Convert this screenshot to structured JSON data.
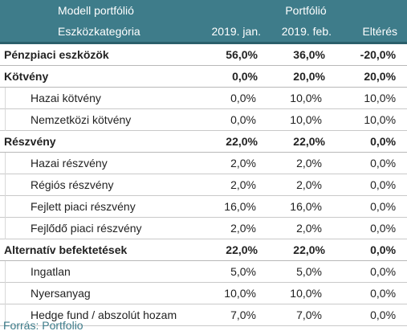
{
  "header": {
    "row1": {
      "label": "Modell portfólió",
      "group": "Portfólió"
    },
    "row2": {
      "category": "Eszközkategória",
      "col1": "2019. jan.",
      "col2": "2019. feb.",
      "col3": "Eltérés"
    }
  },
  "rows": [
    {
      "label": "Pénzpiaci eszközök",
      "jan": "56,0%",
      "feb": "36,0%",
      "diff": "-20,0%"
    },
    {
      "label": "Kötvény",
      "jan": "0,0%",
      "feb": "20,0%",
      "diff": "20,0%"
    },
    {
      "label": "Hazai kötvény",
      "jan": "0,0%",
      "feb": "10,0%",
      "diff": "10,0%"
    },
    {
      "label": "Nemzetközi kötvény",
      "jan": "0,0%",
      "feb": "10,0%",
      "diff": "10,0%"
    },
    {
      "label": "Részvény",
      "jan": "22,0%",
      "feb": "22,0%",
      "diff": "0,0%"
    },
    {
      "label": "Hazai részvény",
      "jan": "2,0%",
      "feb": "2,0%",
      "diff": "0,0%"
    },
    {
      "label": "Régiós részvény",
      "jan": "2,0%",
      "feb": "2,0%",
      "diff": "0,0%"
    },
    {
      "label": "Fejlett piaci részvény",
      "jan": "16,0%",
      "feb": "16,0%",
      "diff": "0,0%"
    },
    {
      "label": "Fejlődő piaci részvény",
      "jan": "2,0%",
      "feb": "2,0%",
      "diff": "0,0%"
    },
    {
      "label": "Alternatív befektetések",
      "jan": "22,0%",
      "feb": "22,0%",
      "diff": "0,0%"
    },
    {
      "label": "Ingatlan",
      "jan": "5,0%",
      "feb": "5,0%",
      "diff": "0,0%"
    },
    {
      "label": "Nyersanyag",
      "jan": "10,0%",
      "feb": "10,0%",
      "diff": "0,0%"
    },
    {
      "label": "Hedge fund / abszolút hozam",
      "jan": "7,0%",
      "feb": "7,0%",
      "diff": "0,0%"
    }
  ],
  "source": "Forrás: Portfolio",
  "colors": {
    "header_bg": "#3e7c8a",
    "source_text": "#3e7c8a"
  }
}
